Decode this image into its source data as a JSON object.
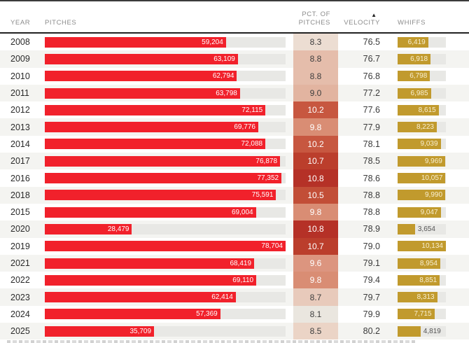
{
  "header": {
    "columns": {
      "year": "YEAR",
      "pitches": "PITCHES",
      "pct_line1": "PCT. OF",
      "pct_line2": "PITCHES",
      "velocity": "VELOCITY",
      "whiffs": "WHIFFS"
    },
    "sort": {
      "column": "velocity",
      "direction": "ascending",
      "icon": "▲"
    }
  },
  "colors": {
    "bar_red": "#f1212b",
    "bar_gold": "#c19a2d",
    "track": "#e8e8e5",
    "stripe": "#f4f4f1",
    "header_rule": "#222222",
    "pct_scale_min": "#eae6df",
    "pct_scale_max": "#b53127"
  },
  "scale": {
    "pitches_max": 78704,
    "whiffs_max": 10134
  },
  "rows": [
    {
      "year": "2008",
      "pitches_label": "59,204",
      "pitches_value": 59204,
      "pct_label": "8.3",
      "pct_bg": "#ecddd2",
      "pct_fg": "#3d3d3d",
      "velocity_label": "76.5",
      "whiffs_label": "6,419",
      "whiffs_value": 6419,
      "whiffs_label_inside": true
    },
    {
      "year": "2009",
      "pitches_label": "63,109",
      "pitches_value": 63109,
      "pct_label": "8.8",
      "pct_bg": "#e5bdab",
      "pct_fg": "#3d3d3d",
      "velocity_label": "76.7",
      "whiffs_label": "6,918",
      "whiffs_value": 6918,
      "whiffs_label_inside": true
    },
    {
      "year": "2010",
      "pitches_label": "62,794",
      "pitches_value": 62794,
      "pct_label": "8.8",
      "pct_bg": "#e5bdab",
      "pct_fg": "#3d3d3d",
      "velocity_label": "76.8",
      "whiffs_label": "6,798",
      "whiffs_value": 6798,
      "whiffs_label_inside": true
    },
    {
      "year": "2011",
      "pitches_label": "63,798",
      "pitches_value": 63798,
      "pct_label": "9.0",
      "pct_bg": "#e2b4a0",
      "pct_fg": "#3d3d3d",
      "velocity_label": "77.2",
      "whiffs_label": "6,985",
      "whiffs_value": 6985,
      "whiffs_label_inside": true
    },
    {
      "year": "2012",
      "pitches_label": "72,115",
      "pitches_value": 72115,
      "pct_label": "10.2",
      "pct_bg": "#c75740",
      "pct_fg": "#ffffff",
      "velocity_label": "77.6",
      "whiffs_label": "8,615",
      "whiffs_value": 8615,
      "whiffs_label_inside": true
    },
    {
      "year": "2013",
      "pitches_label": "69,776",
      "pitches_value": 69776,
      "pct_label": "9.8",
      "pct_bg": "#d98d74",
      "pct_fg": "#ffffff",
      "velocity_label": "77.9",
      "whiffs_label": "8,223",
      "whiffs_value": 8223,
      "whiffs_label_inside": true
    },
    {
      "year": "2014",
      "pitches_label": "72,088",
      "pitches_value": 72088,
      "pct_label": "10.2",
      "pct_bg": "#c75740",
      "pct_fg": "#ffffff",
      "velocity_label": "78.1",
      "whiffs_label": "9,039",
      "whiffs_value": 9039,
      "whiffs_label_inside": true
    },
    {
      "year": "2017",
      "pitches_label": "76,878",
      "pitches_value": 76878,
      "pct_label": "10.7",
      "pct_bg": "#bb3e2c",
      "pct_fg": "#ffffff",
      "velocity_label": "78.5",
      "whiffs_label": "9,969",
      "whiffs_value": 9969,
      "whiffs_label_inside": true
    },
    {
      "year": "2016",
      "pitches_label": "77,352",
      "pitches_value": 77352,
      "pct_label": "10.8",
      "pct_bg": "#b53127",
      "pct_fg": "#ffffff",
      "velocity_label": "78.6",
      "whiffs_label": "10,057",
      "whiffs_value": 10057,
      "whiffs_label_inside": true
    },
    {
      "year": "2018",
      "pitches_label": "75,591",
      "pitches_value": 75591,
      "pct_label": "10.5",
      "pct_bg": "#c24e37",
      "pct_fg": "#ffffff",
      "velocity_label": "78.8",
      "whiffs_label": "9,990",
      "whiffs_value": 9990,
      "whiffs_label_inside": true
    },
    {
      "year": "2015",
      "pitches_label": "69,004",
      "pitches_value": 69004,
      "pct_label": "9.8",
      "pct_bg": "#d98d74",
      "pct_fg": "#ffffff",
      "velocity_label": "78.8",
      "whiffs_label": "9,047",
      "whiffs_value": 9047,
      "whiffs_label_inside": true
    },
    {
      "year": "2020",
      "pitches_label": "28,479",
      "pitches_value": 28479,
      "pct_label": "10.8",
      "pct_bg": "#b53127",
      "pct_fg": "#ffffff",
      "velocity_label": "78.9",
      "whiffs_label": "3,654",
      "whiffs_value": 3654,
      "whiffs_label_inside": false
    },
    {
      "year": "2019",
      "pitches_label": "78,704",
      "pitches_value": 78704,
      "pct_label": "10.7",
      "pct_bg": "#bb3e2c",
      "pct_fg": "#ffffff",
      "velocity_label": "79.0",
      "whiffs_label": "10,134",
      "whiffs_value": 10134,
      "whiffs_label_inside": true
    },
    {
      "year": "2021",
      "pitches_label": "68,419",
      "pitches_value": 68419,
      "pct_label": "9.6",
      "pct_bg": "#dc957f",
      "pct_fg": "#ffffff",
      "velocity_label": "79.1",
      "whiffs_label": "8,954",
      "whiffs_value": 8954,
      "whiffs_label_inside": true
    },
    {
      "year": "2022",
      "pitches_label": "69,110",
      "pitches_value": 69110,
      "pct_label": "9.8",
      "pct_bg": "#d98d74",
      "pct_fg": "#ffffff",
      "velocity_label": "79.4",
      "whiffs_label": "8,851",
      "whiffs_value": 8851,
      "whiffs_label_inside": true
    },
    {
      "year": "2023",
      "pitches_label": "62,414",
      "pitches_value": 62414,
      "pct_label": "8.7",
      "pct_bg": "#e8cabb",
      "pct_fg": "#3d3d3d",
      "velocity_label": "79.7",
      "whiffs_label": "8,313",
      "whiffs_value": 8313,
      "whiffs_label_inside": true
    },
    {
      "year": "2024",
      "pitches_label": "57,369",
      "pitches_value": 57369,
      "pct_label": "8.1",
      "pct_bg": "#eae6df",
      "pct_fg": "#3d3d3d",
      "velocity_label": "79.9",
      "whiffs_label": "7,715",
      "whiffs_value": 7715,
      "whiffs_label_inside": true
    },
    {
      "year": "2025",
      "pitches_label": "35,709",
      "pitches_value": 35709,
      "pct_label": "8.5",
      "pct_bg": "#ebd4c6",
      "pct_fg": "#3d3d3d",
      "velocity_label": "80.2",
      "whiffs_label": "4,819",
      "whiffs_value": 4819,
      "whiffs_label_inside": false
    }
  ],
  "chart_data": {
    "type": "table",
    "title": "",
    "columns": [
      "YEAR",
      "PITCHES",
      "PCT. OF PITCHES",
      "VELOCITY",
      "WHIFFS"
    ],
    "sorted_by": "VELOCITY ascending",
    "bar_columns": {
      "PITCHES": {
        "max": 78704,
        "color": "#f1212b"
      },
      "WHIFFS": {
        "max": 10134,
        "color": "#c19a2d"
      }
    },
    "heatmap_column": {
      "name": "PCT. OF PITCHES",
      "range": [
        8.1,
        10.8
      ]
    },
    "rows": [
      [
        2008,
        59204,
        8.3,
        76.5,
        6419
      ],
      [
        2009,
        63109,
        8.8,
        76.7,
        6918
      ],
      [
        2010,
        62794,
        8.8,
        76.8,
        6798
      ],
      [
        2011,
        63798,
        9.0,
        77.2,
        6985
      ],
      [
        2012,
        72115,
        10.2,
        77.6,
        8615
      ],
      [
        2013,
        69776,
        9.8,
        77.9,
        8223
      ],
      [
        2014,
        72088,
        10.2,
        78.1,
        9039
      ],
      [
        2017,
        76878,
        10.7,
        78.5,
        9969
      ],
      [
        2016,
        77352,
        10.8,
        78.6,
        10057
      ],
      [
        2018,
        75591,
        10.5,
        78.8,
        9990
      ],
      [
        2015,
        69004,
        9.8,
        78.8,
        9047
      ],
      [
        2020,
        28479,
        10.8,
        78.9,
        3654
      ],
      [
        2019,
        78704,
        10.7,
        79.0,
        10134
      ],
      [
        2021,
        68419,
        9.6,
        79.1,
        8954
      ],
      [
        2022,
        69110,
        9.8,
        79.4,
        8851
      ],
      [
        2023,
        62414,
        8.7,
        79.7,
        8313
      ],
      [
        2024,
        57369,
        8.1,
        79.9,
        7715
      ],
      [
        2025,
        35709,
        8.5,
        80.2,
        4819
      ]
    ]
  }
}
